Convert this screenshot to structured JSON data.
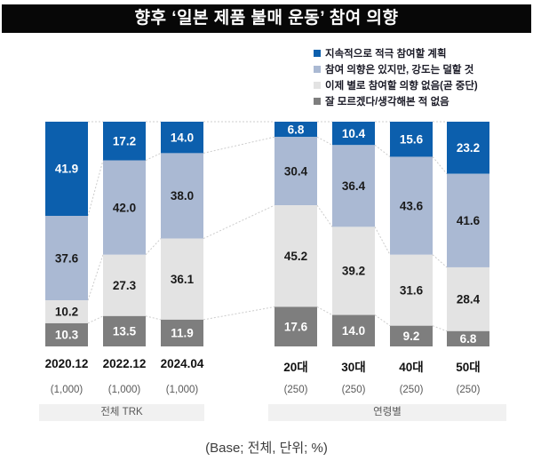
{
  "title": "향후 ‘일본 제품 불매 운동’ 참여 의향",
  "note": "(Base; 전체, 단위; %)",
  "colors": {
    "title_bg": "#070707",
    "connector": "#cccccc",
    "strip_bg": "#f1f1f1"
  },
  "chart_data": {
    "type": "bar",
    "stacked": true,
    "unit": "%",
    "ylim": [
      0,
      100
    ],
    "legend_position": "top-right",
    "categories": [
      "2020.12",
      "2022.12",
      "2024.04",
      "20대",
      "30대",
      "40대",
      "50대"
    ],
    "bases": [
      "(1,000)",
      "(1,000)",
      "(1,000)",
      "(250)",
      "(250)",
      "(250)",
      "(250)"
    ],
    "series": [
      {
        "name": "지속적으로 적극 참여할 계획",
        "color": "#0c5fad",
        "label_color": "#ffffff",
        "values": [
          41.9,
          17.2,
          14.0,
          6.8,
          10.4,
          15.6,
          23.2
        ]
      },
      {
        "name": "참여 의향은 있지만, 강도는 덜할 것",
        "color": "#aab9d3",
        "label_color": "#1a1a1a",
        "values": [
          37.6,
          42.0,
          38.0,
          30.4,
          36.4,
          43.6,
          41.6
        ]
      },
      {
        "name": "이제 별로 참여할 의향 없음(곧 중단)",
        "color": "#e3e3e3",
        "label_color": "#1a1a1a",
        "values": [
          10.2,
          27.3,
          36.1,
          45.2,
          39.2,
          31.6,
          28.4
        ]
      },
      {
        "name": "잘 모르겠다/생각해본 적 없음",
        "color": "#7e7e7e",
        "label_color": "#ffffff",
        "values": [
          10.3,
          13.5,
          11.9,
          17.6,
          14.0,
          9.2,
          6.8
        ]
      }
    ],
    "group_spans": [
      {
        "label": "전체 TRK",
        "from": 0,
        "to": 2
      },
      {
        "label": "연령별",
        "from": 3,
        "to": 6
      }
    ]
  }
}
